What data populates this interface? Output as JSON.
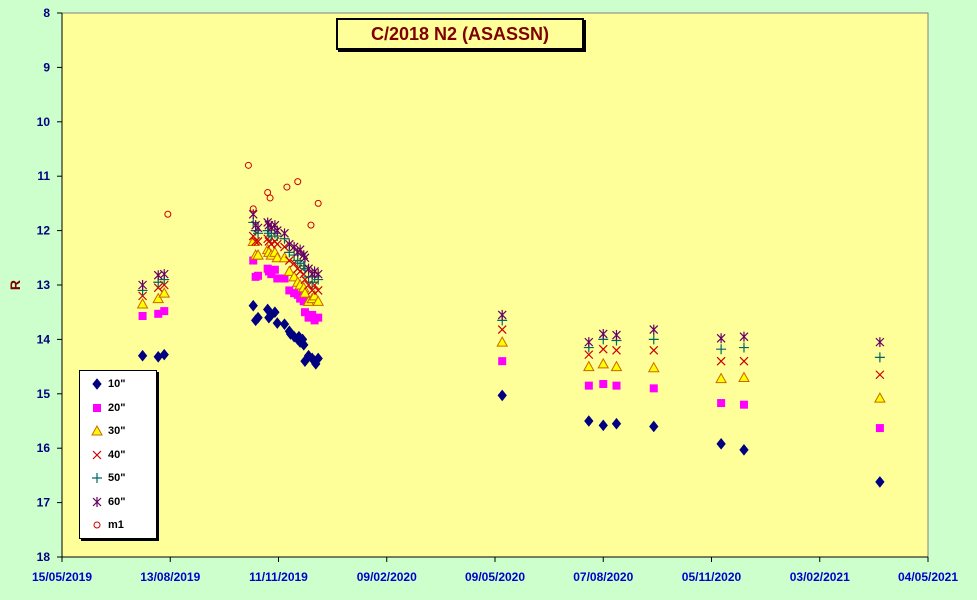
{
  "chart_data": {
    "type": "scatter",
    "title": "C/2018 N2 (ASASSN)",
    "ylabel": "R",
    "xlabel": "",
    "ylim": [
      8,
      18
    ],
    "y_inverted": true,
    "y_ticks": [
      "8",
      "9",
      "10",
      "11",
      "12",
      "13",
      "14",
      "15",
      "16",
      "17",
      "18"
    ],
    "xlim": [
      "15/05/2019",
      "04/05/2021"
    ],
    "x_ticks": [
      "15/05/2019",
      "13/08/2019",
      "11/11/2019",
      "09/02/2020",
      "09/05/2020",
      "07/08/2020",
      "05/11/2020",
      "03/02/2021",
      "04/05/2021"
    ],
    "grid": false,
    "legend_position": "bottom-left",
    "background": "#ffff99",
    "series": [
      {
        "name": "10\"",
        "marker": "diamond",
        "color": "#000080",
        "points": [
          [
            "21/07/2019",
            14.3
          ],
          [
            "03/08/2019",
            14.32
          ],
          [
            "08/08/2019",
            14.28
          ],
          [
            "21/10/2019",
            13.38
          ],
          [
            "23/10/2019",
            13.65
          ],
          [
            "25/10/2019",
            13.6
          ],
          [
            "02/11/2019",
            13.45
          ],
          [
            "03/11/2019",
            13.6
          ],
          [
            "05/11/2019",
            13.55
          ],
          [
            "08/11/2019",
            13.5
          ],
          [
            "10/11/2019",
            13.7
          ],
          [
            "16/11/2019",
            13.72
          ],
          [
            "20/11/2019",
            13.85
          ],
          [
            "21/11/2019",
            13.9
          ],
          [
            "24/11/2019",
            13.95
          ],
          [
            "27/11/2019",
            14.0
          ],
          [
            "28/11/2019",
            13.95
          ],
          [
            "29/11/2019",
            14.05
          ],
          [
            "01/12/2019",
            14.0
          ],
          [
            "02/12/2019",
            14.1
          ],
          [
            "03/12/2019",
            14.4
          ],
          [
            "06/12/2019",
            14.3
          ],
          [
            "09/12/2019",
            14.35
          ],
          [
            "11/12/2019",
            14.4
          ],
          [
            "12/12/2019",
            14.45
          ],
          [
            "14/12/2019",
            14.35
          ],
          [
            "15/05/2020",
            15.03
          ],
          [
            "26/07/2020",
            15.5
          ],
          [
            "07/08/2020",
            15.58
          ],
          [
            "18/08/2020",
            15.55
          ],
          [
            "18/09/2020",
            15.6
          ],
          [
            "13/11/2020",
            15.92
          ],
          [
            "02/12/2020",
            16.03
          ],
          [
            "25/03/2021",
            16.62
          ]
        ]
      },
      {
        "name": "20\"",
        "marker": "square",
        "color": "#ff00ff",
        "points": [
          [
            "21/07/2019",
            13.57
          ],
          [
            "03/08/2019",
            13.53
          ],
          [
            "08/08/2019",
            13.48
          ],
          [
            "21/10/2019",
            12.55
          ],
          [
            "23/10/2019",
            12.85
          ],
          [
            "25/10/2019",
            12.83
          ],
          [
            "02/11/2019",
            12.7
          ],
          [
            "03/11/2019",
            12.75
          ],
          [
            "05/11/2019",
            12.8
          ],
          [
            "08/11/2019",
            12.72
          ],
          [
            "10/11/2019",
            12.88
          ],
          [
            "16/11/2019",
            12.88
          ],
          [
            "20/11/2019",
            13.1
          ],
          [
            "24/11/2019",
            13.15
          ],
          [
            "27/11/2019",
            13.18
          ],
          [
            "29/11/2019",
            13.25
          ],
          [
            "02/12/2019",
            13.3
          ],
          [
            "03/12/2019",
            13.5
          ],
          [
            "06/12/2019",
            13.6
          ],
          [
            "09/12/2019",
            13.55
          ],
          [
            "11/12/2019",
            13.65
          ],
          [
            "14/12/2019",
            13.6
          ],
          [
            "15/05/2020",
            14.4
          ],
          [
            "26/07/2020",
            14.85
          ],
          [
            "07/08/2020",
            14.82
          ],
          [
            "18/08/2020",
            14.85
          ],
          [
            "18/09/2020",
            14.9
          ],
          [
            "13/11/2020",
            15.17
          ],
          [
            "02/12/2020",
            15.2
          ],
          [
            "25/03/2021",
            15.63
          ]
        ]
      },
      {
        "name": "30\"",
        "marker": "triangle",
        "color": "#cc6600",
        "points": [
          [
            "21/07/2019",
            13.35
          ],
          [
            "03/08/2019",
            13.25
          ],
          [
            "08/08/2019",
            13.15
          ],
          [
            "21/10/2019",
            12.2
          ],
          [
            "23/10/2019",
            12.45
          ],
          [
            "25/10/2019",
            12.45
          ],
          [
            "02/11/2019",
            12.35
          ],
          [
            "03/11/2019",
            12.4
          ],
          [
            "05/11/2019",
            12.45
          ],
          [
            "08/11/2019",
            12.4
          ],
          [
            "10/11/2019",
            12.5
          ],
          [
            "16/11/2019",
            12.5
          ],
          [
            "20/11/2019",
            12.75
          ],
          [
            "24/11/2019",
            12.85
          ],
          [
            "27/11/2019",
            12.95
          ],
          [
            "29/11/2019",
            13.0
          ],
          [
            "02/12/2019",
            13.05
          ],
          [
            "03/12/2019",
            13.15
          ],
          [
            "06/12/2019",
            13.3
          ],
          [
            "09/12/2019",
            13.25
          ],
          [
            "11/12/2019",
            13.2
          ],
          [
            "14/12/2019",
            13.3
          ],
          [
            "15/05/2020",
            14.05
          ],
          [
            "26/07/2020",
            14.5
          ],
          [
            "07/08/2020",
            14.45
          ],
          [
            "18/08/2020",
            14.5
          ],
          [
            "18/09/2020",
            14.52
          ],
          [
            "13/11/2020",
            14.72
          ],
          [
            "02/12/2020",
            14.7
          ],
          [
            "25/03/2021",
            15.08
          ]
        ]
      },
      {
        "name": "40\"",
        "marker": "x",
        "color": "#cc0000",
        "points": [
          [
            "21/07/2019",
            13.2
          ],
          [
            "03/08/2019",
            13.05
          ],
          [
            "08/08/2019",
            13.0
          ],
          [
            "21/10/2019",
            12.1
          ],
          [
            "23/10/2019",
            12.2
          ],
          [
            "25/10/2019",
            12.2
          ],
          [
            "02/11/2019",
            12.15
          ],
          [
            "03/11/2019",
            12.2
          ],
          [
            "05/11/2019",
            12.25
          ],
          [
            "08/11/2019",
            12.2
          ],
          [
            "10/11/2019",
            12.25
          ],
          [
            "16/11/2019",
            12.3
          ],
          [
            "20/11/2019",
            12.55
          ],
          [
            "24/11/2019",
            12.6
          ],
          [
            "27/11/2019",
            12.7
          ],
          [
            "29/11/2019",
            12.75
          ],
          [
            "02/12/2019",
            12.8
          ],
          [
            "03/12/2019",
            12.9
          ],
          [
            "06/12/2019",
            13.0
          ],
          [
            "09/12/2019",
            13.1
          ],
          [
            "11/12/2019",
            13.0
          ],
          [
            "14/12/2019",
            13.1
          ],
          [
            "15/05/2020",
            13.82
          ],
          [
            "26/07/2020",
            14.28
          ],
          [
            "07/08/2020",
            14.18
          ],
          [
            "18/08/2020",
            14.2
          ],
          [
            "18/09/2020",
            14.2
          ],
          [
            "13/11/2020",
            14.4
          ],
          [
            "02/12/2020",
            14.4
          ],
          [
            "25/03/2021",
            14.65
          ]
        ]
      },
      {
        "name": "50\"",
        "marker": "plus",
        "color": "#006666",
        "points": [
          [
            "21/07/2019",
            13.1
          ],
          [
            "03/08/2019",
            12.95
          ],
          [
            "08/08/2019",
            12.9
          ],
          [
            "21/10/2019",
            11.85
          ],
          [
            "23/10/2019",
            12.0
          ],
          [
            "25/10/2019",
            12.05
          ],
          [
            "02/11/2019",
            12.0
          ],
          [
            "03/11/2019",
            12.05
          ],
          [
            "05/11/2019",
            12.1
          ],
          [
            "08/11/2019",
            12.05
          ],
          [
            "10/11/2019",
            12.1
          ],
          [
            "16/11/2019",
            12.15
          ],
          [
            "20/11/2019",
            12.4
          ],
          [
            "24/11/2019",
            12.45
          ],
          [
            "27/11/2019",
            12.55
          ],
          [
            "29/11/2019",
            12.6
          ],
          [
            "02/12/2019",
            12.65
          ],
          [
            "03/12/2019",
            12.7
          ],
          [
            "06/12/2019",
            12.85
          ],
          [
            "09/12/2019",
            12.95
          ],
          [
            "11/12/2019",
            12.85
          ],
          [
            "14/12/2019",
            12.9
          ],
          [
            "15/05/2020",
            13.65
          ],
          [
            "26/07/2020",
            14.15
          ],
          [
            "07/08/2020",
            14.0
          ],
          [
            "18/08/2020",
            14.02
          ],
          [
            "18/09/2020",
            14.0
          ],
          [
            "13/11/2020",
            14.18
          ],
          [
            "02/12/2020",
            14.15
          ],
          [
            "25/03/2021",
            14.33
          ]
        ]
      },
      {
        "name": "60\"",
        "marker": "star",
        "color": "#660066",
        "points": [
          [
            "21/07/2019",
            13.0
          ],
          [
            "03/08/2019",
            12.82
          ],
          [
            "08/08/2019",
            12.8
          ],
          [
            "21/10/2019",
            11.7
          ],
          [
            "23/10/2019",
            11.9
          ],
          [
            "25/10/2019",
            11.95
          ],
          [
            "02/11/2019",
            11.85
          ],
          [
            "03/11/2019",
            11.9
          ],
          [
            "05/11/2019",
            11.95
          ],
          [
            "08/11/2019",
            11.9
          ],
          [
            "10/11/2019",
            12.0
          ],
          [
            "16/11/2019",
            12.05
          ],
          [
            "20/11/2019",
            12.25
          ],
          [
            "24/11/2019",
            12.3
          ],
          [
            "27/11/2019",
            12.4
          ],
          [
            "29/11/2019",
            12.35
          ],
          [
            "02/12/2019",
            12.45
          ],
          [
            "03/12/2019",
            12.5
          ],
          [
            "06/12/2019",
            12.7
          ],
          [
            "09/12/2019",
            12.8
          ],
          [
            "11/12/2019",
            12.75
          ],
          [
            "14/12/2019",
            12.8
          ],
          [
            "15/05/2020",
            13.55
          ],
          [
            "26/07/2020",
            14.05
          ],
          [
            "07/08/2020",
            13.9
          ],
          [
            "18/08/2020",
            13.92
          ],
          [
            "18/09/2020",
            13.82
          ],
          [
            "13/11/2020",
            13.98
          ],
          [
            "02/12/2020",
            13.95
          ],
          [
            "25/03/2021",
            14.05
          ]
        ]
      },
      {
        "name": "m1",
        "marker": "circle-open",
        "color": "#cc0000",
        "points": [
          [
            "11/08/2019",
            11.7
          ],
          [
            "17/10/2019",
            10.8
          ],
          [
            "21/10/2019",
            11.6
          ],
          [
            "02/11/2019",
            11.3
          ],
          [
            "04/11/2019",
            11.4
          ],
          [
            "18/11/2019",
            11.2
          ],
          [
            "27/11/2019",
            11.1
          ],
          [
            "08/12/2019",
            11.9
          ],
          [
            "14/12/2019",
            11.5
          ]
        ]
      }
    ]
  }
}
